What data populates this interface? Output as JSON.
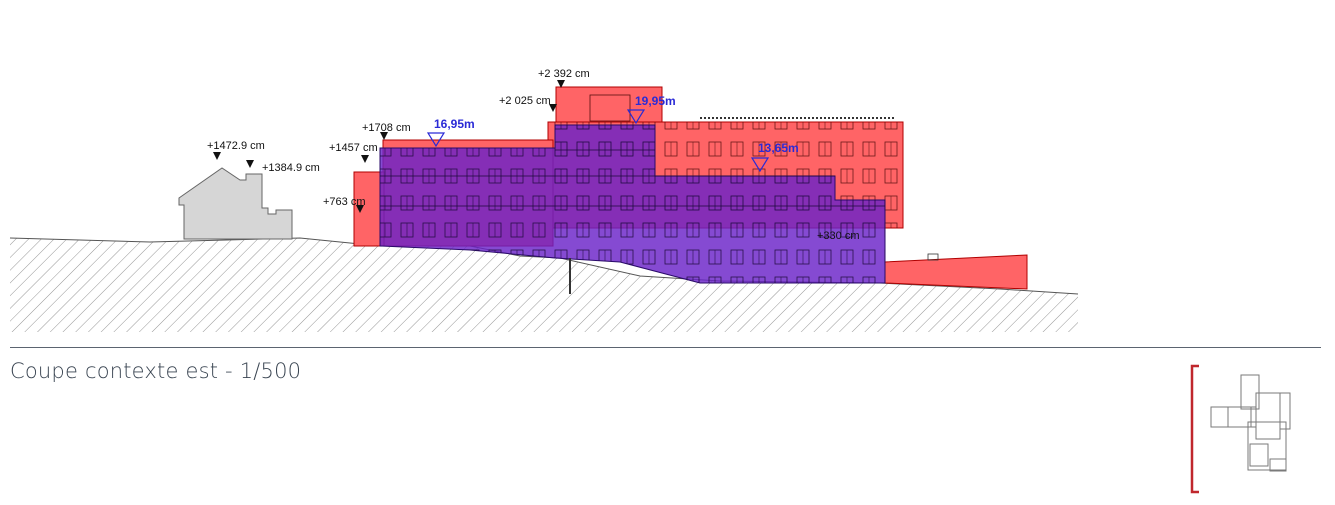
{
  "caption": "Coupe contexte est - 1/500",
  "elevations": {
    "house_ridge": "+1472.9 cm",
    "house_eave": "+1384.9 cm",
    "roof_top": "+2 392 cm",
    "roof_level": "+2 025 cm",
    "level_1708": "+1708 cm",
    "level_1457": "+1457 cm",
    "level_763": "+763 cm",
    "level_330": "+330 cm"
  },
  "levels": {
    "left": "16,95m",
    "center": "19,95m",
    "right": "13,65m"
  },
  "colors": {
    "existing": "#ff6466",
    "proposed": "#6a22c8",
    "ground_hatch": "#8a8a8a",
    "context_house": "#d6d6d6",
    "keyplan_bracket": "#c0272d",
    "rule": "#5b6470"
  }
}
